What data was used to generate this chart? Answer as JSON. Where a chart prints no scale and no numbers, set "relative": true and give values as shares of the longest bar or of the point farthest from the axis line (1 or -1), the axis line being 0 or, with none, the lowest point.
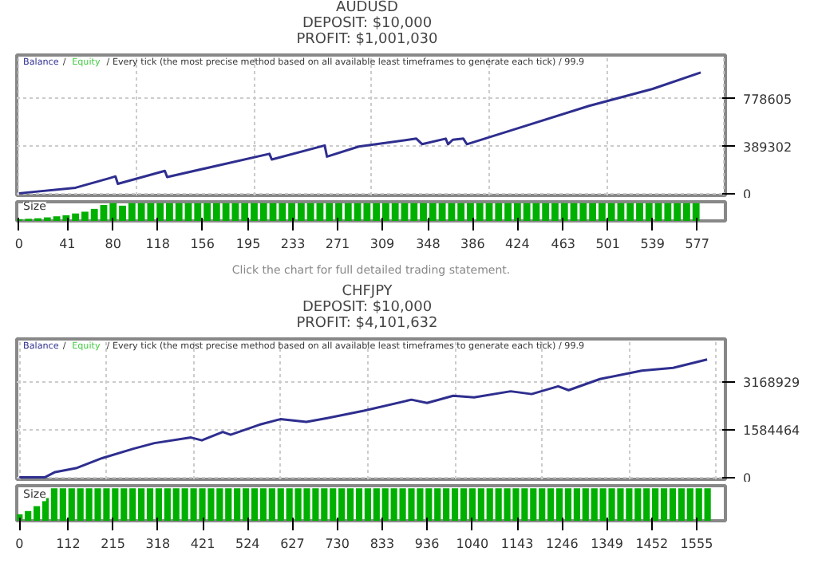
{
  "chart_data": [
    {
      "type": "line",
      "title": "AUDUSD",
      "subtitle": "DEPOSIT: $10,000\nPROFIT: $1,001,030",
      "xlim": [
        -2,
        601
      ],
      "ylim": [
        -7000,
        1131000
      ],
      "yticks": [
        0,
        389302,
        778605
      ],
      "tick_labels": "y",
      "grid": true,
      "legend": "top left",
      "annotations": [
        "/",
        "/ Every tick (the most precise method based on all available least timeframes to generate each tick) / 99.9"
      ],
      "series": [
        {
          "name": "Balance",
          "color": "#2e2e8f",
          "x": [
            0,
            48,
            77,
            82,
            84,
            124,
            126,
            213,
            215,
            260,
            262,
            289,
            338,
            343,
            363,
            365,
            369,
            378,
            381,
            427,
            485,
            539,
            580
          ],
          "values": [
            10000,
            55000,
            133000,
            147000,
            87000,
            192000,
            142000,
            330000,
            284000,
            398000,
            307000,
            389000,
            453000,
            408000,
            453000,
            408000,
            444000,
            453000,
            408000,
            545000,
            719000,
            856000,
            990000
          ]
        },
        {
          "name": "Equity",
          "color": "#44cc44",
          "values": [
            null
          ]
        }
      ]
    },
    {
      "type": "bar",
      "relative": true,
      "ylabel": "Size",
      "color": "#00b000",
      "xlim": [
        -2,
        601
      ],
      "xticks": [
        0,
        41,
        80,
        118,
        156,
        195,
        233,
        271,
        309,
        348,
        386,
        424,
        463,
        501,
        539,
        577
      ],
      "annotations": [
        "Click the chart for full detailed trading statement."
      ],
      "x": [
        0,
        8,
        16,
        24,
        32,
        40,
        48,
        56,
        64,
        72,
        80,
        88,
        96,
        104,
        112,
        120,
        128,
        136,
        144,
        152,
        160,
        168,
        176,
        184,
        192,
        200,
        208,
        216,
        224,
        232,
        240,
        248,
        256,
        264,
        272,
        280,
        288,
        296,
        304,
        312,
        320,
        328,
        336,
        344,
        352,
        360,
        368,
        376,
        384,
        392,
        400,
        408,
        416,
        424,
        432,
        440,
        448,
        456,
        464,
        472,
        480,
        488,
        496,
        504,
        512,
        520,
        528,
        536,
        544,
        552,
        560,
        568,
        576
      ],
      "values": [
        0.1,
        0.12,
        0.15,
        0.2,
        0.26,
        0.32,
        0.42,
        0.52,
        0.68,
        0.9,
        1,
        0.86,
        1,
        1,
        1,
        1,
        1,
        1,
        1,
        1,
        1,
        1,
        1,
        1,
        1,
        1,
        1,
        1,
        1,
        1,
        1,
        1,
        1,
        1,
        1,
        1,
        1,
        1,
        1,
        1,
        1,
        1,
        1,
        1,
        1,
        1,
        1,
        1,
        1,
        1,
        1,
        1,
        1,
        1,
        1,
        1,
        1,
        1,
        1,
        1,
        1,
        1,
        1,
        1,
        1,
        1,
        1,
        1,
        1,
        1,
        1,
        1,
        1
      ]
    },
    {
      "type": "line",
      "title": "CHFJPY",
      "subtitle": "DEPOSIT: $10,000\nPROFIT: $4,101,632",
      "xlim": [
        -6,
        1621
      ],
      "ylim": [
        -55000,
        4587000
      ],
      "yticks": [
        0,
        1584464,
        3168929
      ],
      "tick_labels": "y",
      "grid": true,
      "legend": "top left",
      "annotations": [
        "/",
        "/ Every tick (the most precise method based on all available least timeframes to generate each tick) / 99.9"
      ],
      "series": [
        {
          "name": "Balance",
          "color": "#2e2e8f",
          "x": [
            0,
            58,
            82,
            130,
            190,
            262,
            310,
            394,
            419,
            467,
            485,
            551,
            599,
            659,
            707,
            791,
            900,
            936,
            996,
            1044,
            1128,
            1176,
            1237,
            1261,
            1333,
            1429,
            1501,
            1579
          ],
          "values": [
            10000,
            10000,
            184000,
            313000,
            645000,
            958000,
            1142000,
            1327000,
            1234000,
            1511000,
            1419000,
            1750000,
            1934000,
            1842000,
            1971000,
            2211000,
            2579000,
            2469000,
            2708000,
            2653000,
            2856000,
            2764000,
            3022000,
            2893000,
            3261000,
            3537000,
            3629000,
            3906000
          ]
        },
        {
          "name": "Equity",
          "color": "#44cc44",
          "values": [
            null
          ]
        }
      ]
    },
    {
      "type": "bar",
      "relative": true,
      "ylabel": "Size",
      "color": "#00b000",
      "xlim": [
        -6,
        1621
      ],
      "xticks": [
        0,
        112,
        215,
        318,
        421,
        524,
        627,
        730,
        833,
        936,
        1040,
        1143,
        1246,
        1349,
        1452,
        1555
      ],
      "x": [
        0,
        20,
        40,
        60,
        80,
        100,
        120,
        140,
        160,
        180,
        200,
        220,
        240,
        260,
        280,
        300,
        320,
        340,
        360,
        380,
        400,
        420,
        440,
        460,
        480,
        500,
        520,
        540,
        560,
        580,
        600,
        620,
        640,
        660,
        680,
        700,
        720,
        740,
        760,
        780,
        800,
        820,
        840,
        860,
        880,
        900,
        920,
        940,
        960,
        980,
        1000,
        1020,
        1040,
        1060,
        1080,
        1100,
        1120,
        1140,
        1160,
        1180,
        1200,
        1220,
        1240,
        1260,
        1280,
        1300,
        1320,
        1340,
        1360,
        1380,
        1400,
        1420,
        1440,
        1460,
        1480,
        1500,
        1520,
        1540,
        1560,
        1580
      ],
      "values": [
        0.2,
        0.3,
        0.45,
        0.7,
        1,
        1,
        1,
        1,
        1,
        1,
        1,
        1,
        1,
        1,
        1,
        1,
        1,
        1,
        1,
        1,
        1,
        1,
        1,
        1,
        1,
        1,
        1,
        1,
        1,
        1,
        1,
        1,
        1,
        1,
        1,
        1,
        1,
        1,
        1,
        1,
        1,
        1,
        1,
        1,
        1,
        1,
        1,
        1,
        1,
        1,
        1,
        1,
        1,
        1,
        1,
        1,
        1,
        1,
        1,
        1,
        1,
        1,
        1,
        1,
        1,
        1,
        1,
        1,
        1,
        1,
        1,
        1,
        1,
        1,
        1,
        1,
        1,
        1,
        1,
        1
      ]
    }
  ]
}
